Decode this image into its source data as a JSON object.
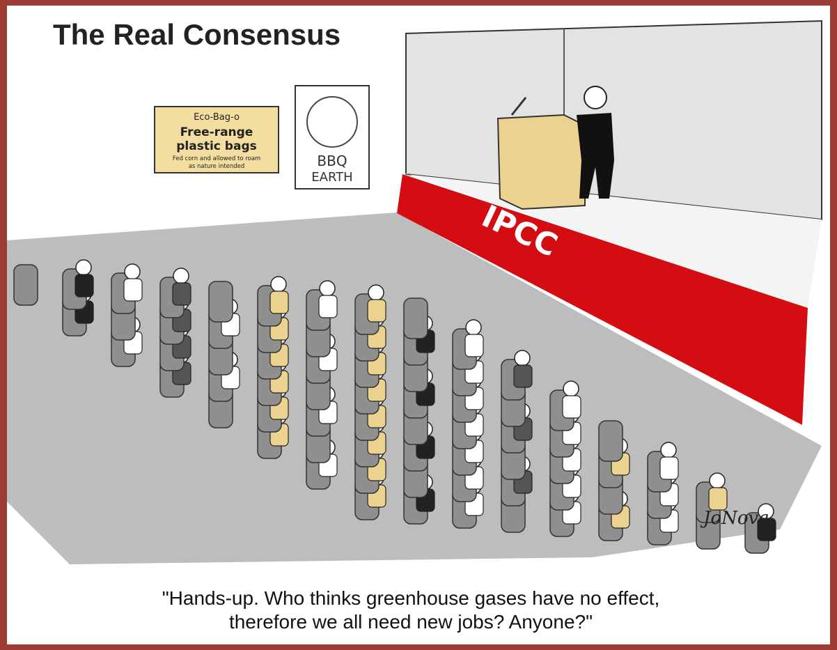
{
  "title": "The Real Consensus",
  "sign": {
    "brand": "Eco-Bag-o",
    "line1": "Free-range",
    "line2": "plastic bags",
    "small1": "Fed corn and allowed to roam",
    "small2": "as nature intended"
  },
  "poster": {
    "line1": "BBQ",
    "line2": "EARTH"
  },
  "stage_label": "IPCC",
  "signature": "JoNova",
  "caption": {
    "line1": "\"Hands-up. Who thinks greenhouse gases have no effect,",
    "line2": "therefore we all need new jobs? Anyone?\""
  }
}
